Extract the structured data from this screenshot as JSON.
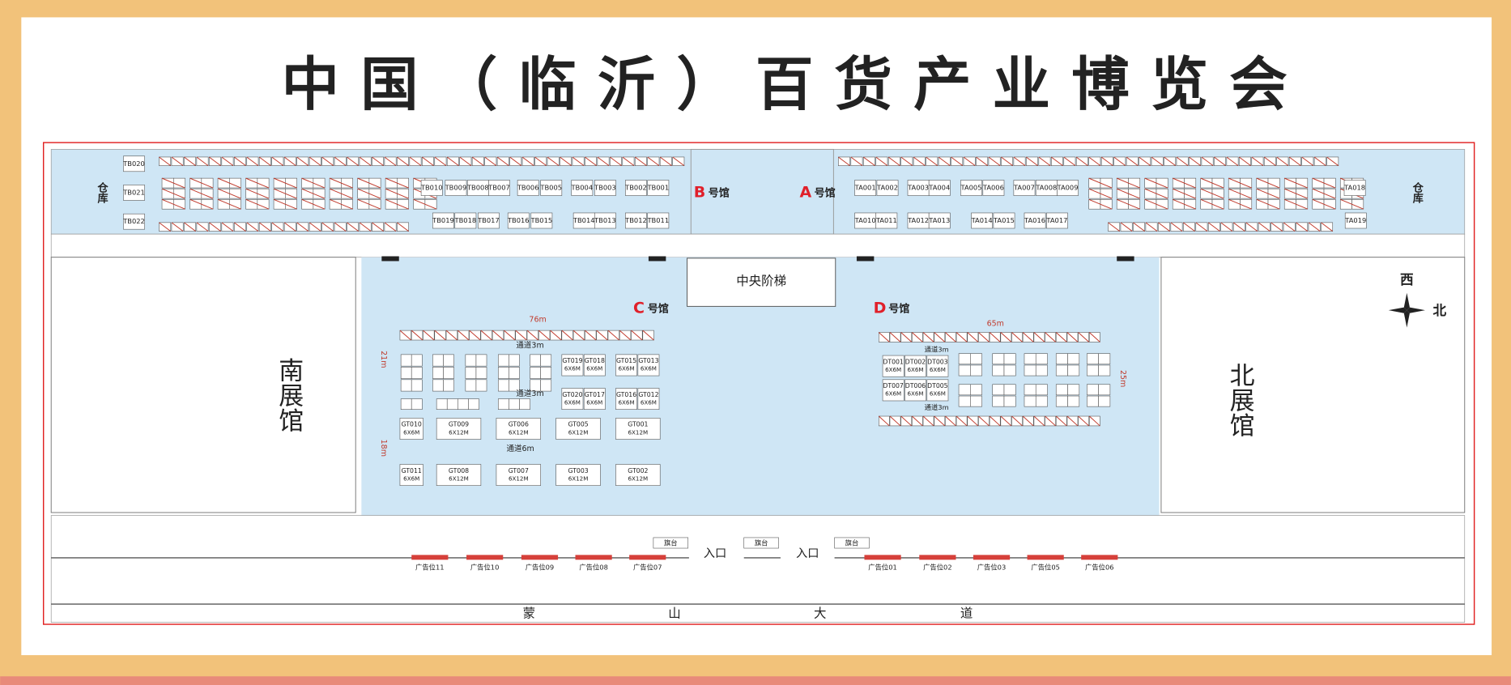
{
  "title": "中国（临沂）百货产业博览会",
  "warehouse": "仓库",
  "hall_b": {
    "letter": "B",
    "label": "号馆",
    "booths": [
      "TB020",
      "TB021",
      "TB022",
      "TB010",
      "TB009",
      "TB008",
      "TB007",
      "TB006",
      "TB005",
      "TB004",
      "TB003",
      "TB002",
      "TB001",
      "TB019",
      "TB018",
      "TB017",
      "TB016",
      "TB015",
      "TB014",
      "TB013",
      "TB012",
      "TB011"
    ]
  },
  "hall_a": {
    "letter": "A",
    "label": "号馆",
    "booths": [
      "TA001",
      "TA002",
      "TA003",
      "TA004",
      "TA005",
      "TA006",
      "TA007",
      "TA008",
      "TA009",
      "TA018",
      "TA010",
      "TA011",
      "TA012",
      "TA013",
      "TA014",
      "TA015",
      "TA016",
      "TA017",
      "TA019"
    ]
  },
  "central_stairs": "中央阶梯",
  "south_hall": "南展馆",
  "north_hall": "北展馆",
  "hall_c": {
    "letter": "C",
    "label": "号馆",
    "width": "76m",
    "depth_top": "21m",
    "depth_bottom": "18m",
    "aisles": [
      "通道3m",
      "通道3m",
      "通道6m"
    ],
    "booths": [
      {
        "id": "GT019",
        "size": "6X6M"
      },
      {
        "id": "GT018",
        "size": "6X6M"
      },
      {
        "id": "GT015",
        "size": "6X6M"
      },
      {
        "id": "GT013",
        "size": "6X6M"
      },
      {
        "id": "GT020",
        "size": "6X6M"
      },
      {
        "id": "GT017",
        "size": "6X6M"
      },
      {
        "id": "GT016",
        "size": "6X6M"
      },
      {
        "id": "GT012",
        "size": "6X6M"
      },
      {
        "id": "GT010",
        "size": "6X6M"
      },
      {
        "id": "GT009",
        "size": "6X12M"
      },
      {
        "id": "GT006",
        "size": "6X12M"
      },
      {
        "id": "GT005",
        "size": "6X12M"
      },
      {
        "id": "GT001",
        "size": "6X12M"
      },
      {
        "id": "GT011",
        "size": "6X6M"
      },
      {
        "id": "GT008",
        "size": "6X12M"
      },
      {
        "id": "GT007",
        "size": "6X12M"
      },
      {
        "id": "GT003",
        "size": "6X12M"
      },
      {
        "id": "GT002",
        "size": "6X12M"
      }
    ]
  },
  "hall_d": {
    "letter": "D",
    "label": "号馆",
    "width": "65m",
    "depth": "25m",
    "aisles": [
      "通道3m",
      "通道3m"
    ],
    "booths": [
      {
        "id": "DT001",
        "size": "6X6M"
      },
      {
        "id": "DT002",
        "size": "6X6M"
      },
      {
        "id": "DT003",
        "size": "6X6M"
      },
      {
        "id": "DT007",
        "size": "6X6M"
      },
      {
        "id": "DT006",
        "size": "6X6M"
      },
      {
        "id": "DT005",
        "size": "6X6M"
      }
    ]
  },
  "compass": {
    "west": "西",
    "north": "北"
  },
  "stages": [
    "旗台",
    "旗台",
    "旗台"
  ],
  "entrances": [
    "入口",
    "入口"
  ],
  "ads": [
    "广告位11",
    "广告位10",
    "广告位09",
    "广告位08",
    "广告位07",
    "广告位01",
    "广告位02",
    "广告位03",
    "广告位05",
    "广告位06"
  ],
  "road": [
    "蒙",
    "山",
    "大",
    "道"
  ]
}
